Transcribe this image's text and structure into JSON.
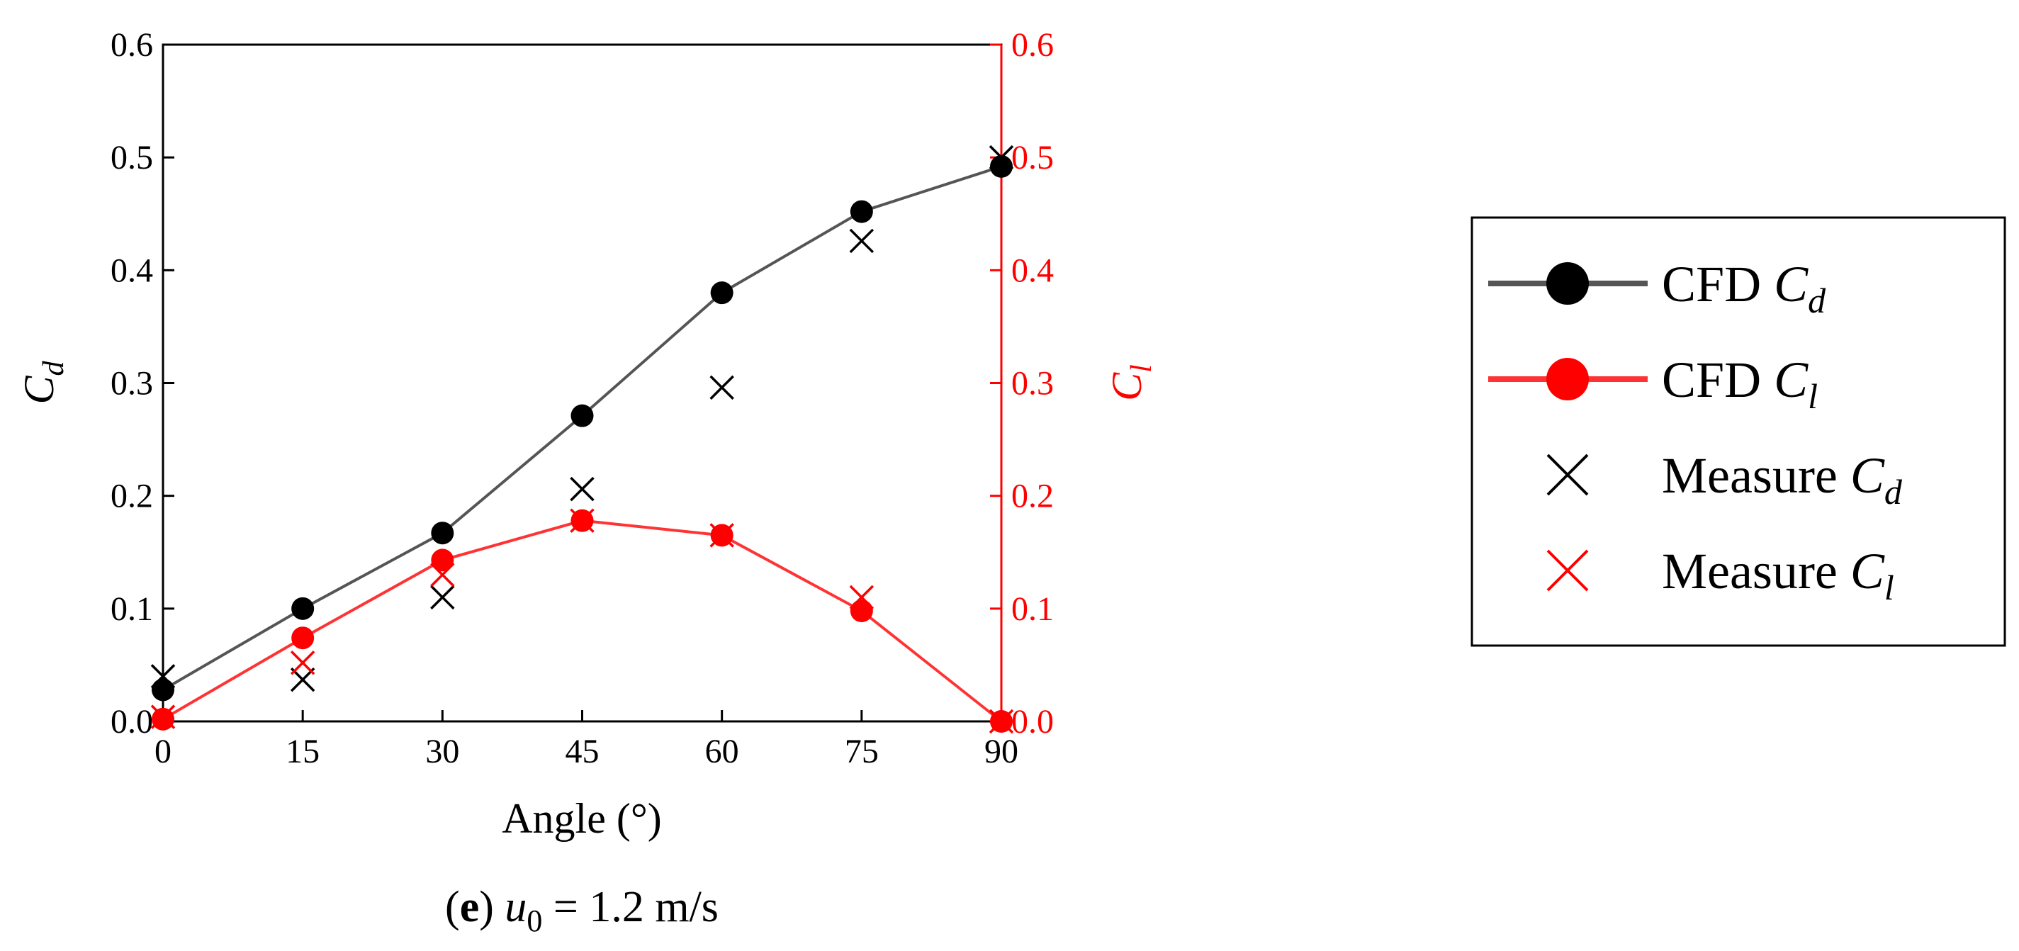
{
  "chart_data": {
    "type": "line",
    "x": [
      0,
      15,
      30,
      45,
      60,
      75,
      90
    ],
    "xlabel": "Angle (°)",
    "xlim": [
      0,
      90
    ],
    "x_ticks": [
      "0",
      "15",
      "30",
      "45",
      "60",
      "75",
      "90"
    ],
    "ylabel_left": {
      "symbol": "C",
      "subscript": "d"
    },
    "ylabel_right": {
      "symbol": "C",
      "subscript": "l"
    },
    "ylim_left": [
      0,
      0.6
    ],
    "ylim_right": [
      0,
      0.6
    ],
    "y_ticks_left": [
      "0.0",
      "0.1",
      "0.2",
      "0.3",
      "0.4",
      "0.5",
      "0.6"
    ],
    "y_ticks_right": [
      "0.0",
      "0.1",
      "0.2",
      "0.3",
      "0.4",
      "0.5",
      "0.6"
    ],
    "grid": false,
    "legend_position": "right, outside plot",
    "series": [
      {
        "name": "CFD Cd",
        "legend": {
          "prefix": "CFD ",
          "symbol": "C",
          "subscript": "d"
        },
        "axis": "left",
        "style": "line-marker",
        "marker": "circle",
        "color": "#000000",
        "line_color": "#555555",
        "values": [
          0.028,
          0.1,
          0.167,
          0.271,
          0.38,
          0.452,
          0.492
        ]
      },
      {
        "name": "CFD Cl",
        "legend": {
          "prefix": "CFD ",
          "symbol": "C",
          "subscript": "l"
        },
        "axis": "right",
        "style": "line-marker",
        "marker": "circle",
        "color": "#ff0000",
        "line_color": "#ff3333",
        "values": [
          0.002,
          0.074,
          0.143,
          0.178,
          0.165,
          0.098,
          0.0
        ]
      },
      {
        "name": "Measure Cd",
        "legend": {
          "prefix": "Measure ",
          "symbol": "C",
          "subscript": "d"
        },
        "axis": "left",
        "style": "marker",
        "marker": "x",
        "color": "#000000",
        "values": [
          0.04,
          0.037,
          0.11,
          0.206,
          0.296,
          0.426,
          0.5
        ]
      },
      {
        "name": "Measure Cl",
        "legend": {
          "prefix": "Measure ",
          "symbol": "C",
          "subscript": "l"
        },
        "axis": "right",
        "style": "marker",
        "marker": "x",
        "color": "#ff0000",
        "values": [
          0.004,
          0.052,
          0.13,
          0.178,
          0.165,
          0.11,
          0.0
        ]
      }
    ],
    "caption": {
      "panel": "e",
      "variable": "u",
      "subscript": "0",
      "value_text": " = 1.2 m/s"
    }
  }
}
